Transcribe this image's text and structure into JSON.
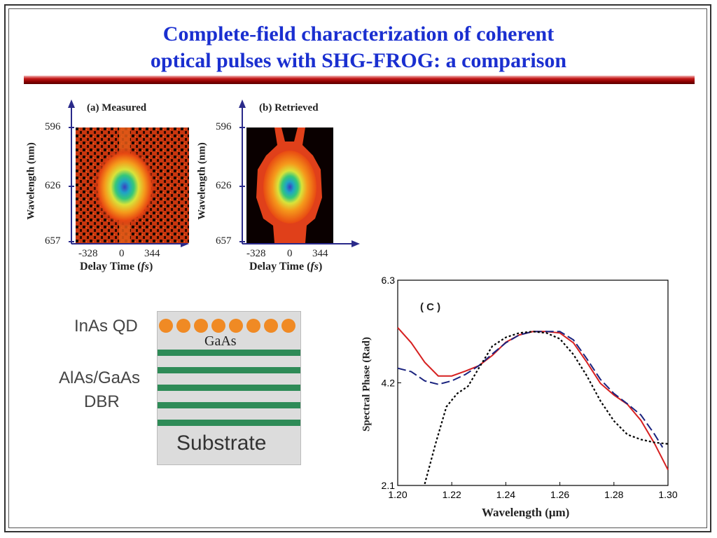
{
  "title_line1": "Complete-field characterization of coherent",
  "title_line2": "optical pulses with SHG-FROG: a comparison",
  "colors": {
    "title": "#1a2fd0",
    "axis": "#2a2a8a",
    "measured_red": "#d62020",
    "retrieved_blue": "#1a237e",
    "reference_black": "#000000",
    "dot_orange": "#f08a24",
    "dbr_green": "#2e8b57"
  },
  "panel_a": {
    "title": "(a) Measured",
    "y_ticks": [
      "596",
      "626",
      "657"
    ],
    "x_ticks": [
      "-328",
      "0",
      "344"
    ],
    "ylabel": "Wavelength (nm)",
    "xlabel_main": "Delay Time (",
    "xlabel_italic": "fs",
    "xlabel_end": ")"
  },
  "panel_b": {
    "title": "(b) Retrieved",
    "y_ticks": [
      "596",
      "626",
      "657"
    ],
    "x_ticks": [
      "-328",
      "0",
      "344"
    ],
    "ylabel": "Wavelength (nm)",
    "xlabel_main": "Delay Time (",
    "xlabel_italic": "fs",
    "xlabel_end": ")"
  },
  "schematic": {
    "qd_label": "InAs QD",
    "gaas_label": "GaAs",
    "dbr_label_1": "AlAs/GaAs",
    "dbr_label_2": "DBR",
    "substrate_label": "Substrate",
    "dot_count": 8,
    "dbr_layer_count": 5
  },
  "chart_data": {
    "type": "line",
    "panel_label": "( C )",
    "xlabel": "Wavelength (μm)",
    "ylabel": "Spectral Phase (Rad)",
    "xlim": [
      1.2,
      1.3
    ],
    "ylim": [
      2.1,
      6.3
    ],
    "x_ticks": [
      "1.20",
      "1.22",
      "1.24",
      "1.26",
      "1.28",
      "1.30"
    ],
    "y_ticks": [
      "2.1",
      "4.2",
      "6.3"
    ],
    "series": [
      {
        "style": "solid",
        "color": "#d62020",
        "points": [
          [
            1.2,
            5.33
          ],
          [
            1.205,
            5.02
          ],
          [
            1.21,
            4.62
          ],
          [
            1.215,
            4.34
          ],
          [
            1.22,
            4.34
          ],
          [
            1.225,
            4.44
          ],
          [
            1.23,
            4.55
          ],
          [
            1.235,
            4.76
          ],
          [
            1.24,
            5.03
          ],
          [
            1.245,
            5.18
          ],
          [
            1.25,
            5.25
          ],
          [
            1.255,
            5.25
          ],
          [
            1.26,
            5.22
          ],
          [
            1.265,
            5.02
          ],
          [
            1.27,
            4.62
          ],
          [
            1.275,
            4.19
          ],
          [
            1.28,
            3.95
          ],
          [
            1.285,
            3.76
          ],
          [
            1.29,
            3.43
          ],
          [
            1.295,
            2.96
          ],
          [
            1.3,
            2.42
          ]
        ]
      },
      {
        "style": "dashed",
        "color": "#1a237e",
        "points": [
          [
            1.2,
            4.5
          ],
          [
            1.205,
            4.43
          ],
          [
            1.21,
            4.24
          ],
          [
            1.215,
            4.17
          ],
          [
            1.22,
            4.24
          ],
          [
            1.225,
            4.37
          ],
          [
            1.23,
            4.55
          ],
          [
            1.235,
            4.79
          ],
          [
            1.24,
            5.02
          ],
          [
            1.245,
            5.18
          ],
          [
            1.25,
            5.25
          ],
          [
            1.255,
            5.25
          ],
          [
            1.26,
            5.25
          ],
          [
            1.265,
            5.08
          ],
          [
            1.27,
            4.69
          ],
          [
            1.275,
            4.27
          ],
          [
            1.28,
            3.98
          ],
          [
            1.285,
            3.77
          ],
          [
            1.29,
            3.54
          ],
          [
            1.295,
            3.15
          ],
          [
            1.298,
            2.88
          ]
        ]
      },
      {
        "style": "dotted",
        "color": "#000000",
        "points": [
          [
            1.21,
            2.13
          ],
          [
            1.214,
            2.95
          ],
          [
            1.218,
            3.71
          ],
          [
            1.222,
            3.98
          ],
          [
            1.226,
            4.13
          ],
          [
            1.23,
            4.5
          ],
          [
            1.235,
            4.95
          ],
          [
            1.24,
            5.13
          ],
          [
            1.245,
            5.22
          ],
          [
            1.25,
            5.25
          ],
          [
            1.255,
            5.22
          ],
          [
            1.26,
            5.1
          ],
          [
            1.265,
            4.78
          ],
          [
            1.27,
            4.34
          ],
          [
            1.275,
            3.83
          ],
          [
            1.28,
            3.42
          ],
          [
            1.285,
            3.14
          ],
          [
            1.29,
            3.04
          ],
          [
            1.295,
            2.98
          ],
          [
            1.3,
            2.95
          ]
        ]
      }
    ]
  }
}
